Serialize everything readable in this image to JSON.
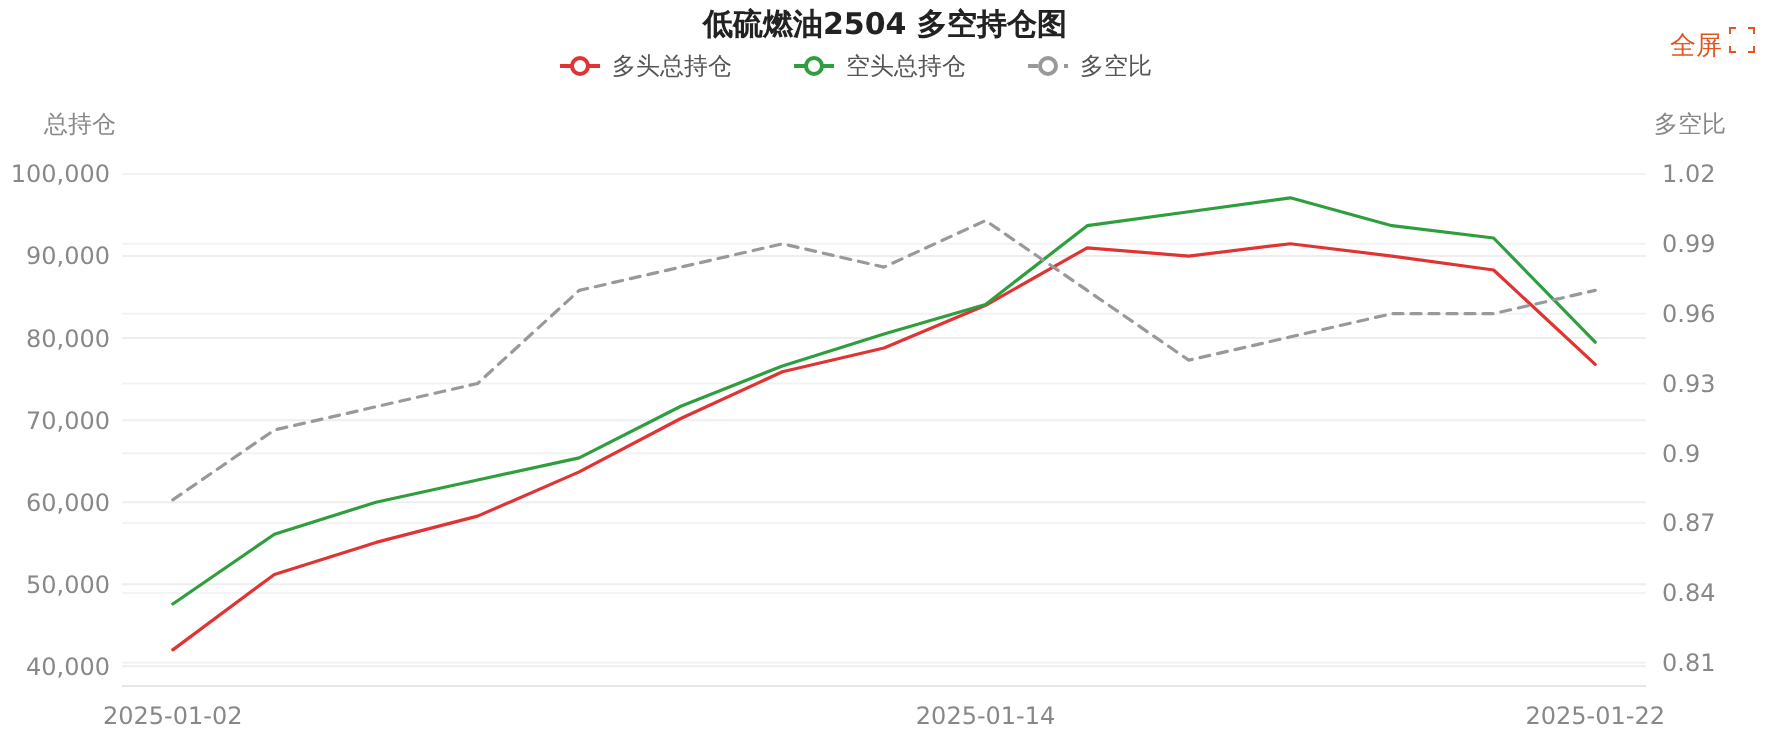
{
  "chart_data": {
    "type": "line",
    "title": "低硫燃油2504 多空持仓图",
    "ylabel": "总持仓",
    "y2label": "多空比",
    "annotations": [
      "全屏"
    ],
    "categories": [
      "2025-01-02",
      null,
      null,
      null,
      null,
      null,
      null,
      null,
      "2025-01-14",
      null,
      null,
      null,
      null,
      null,
      "2025-01-22"
    ],
    "series": [
      {
        "name": "多头总持仓",
        "color": "#e03333",
        "values": [
          42000,
          51200,
          55100,
          58300,
          63700,
          70200,
          75900,
          78800,
          84000,
          91000,
          90000,
          91500,
          90000,
          88300,
          76800
        ]
      },
      {
        "name": "空头总持仓",
        "color": "#2e9e3e",
        "values": [
          47600,
          56100,
          60000,
          62700,
          65400,
          71700,
          76600,
          80500,
          84100,
          93700,
          95400,
          97100,
          93700,
          92200,
          79500
        ]
      },
      {
        "name": "多空比",
        "color": "#999999",
        "axis": "y2",
        "line_style": "dashed",
        "values": [
          0.88,
          0.91,
          0.92,
          0.93,
          0.97,
          0.98,
          0.99,
          0.98,
          1.0,
          0.97,
          0.94,
          0.95,
          0.96,
          0.96,
          0.97
        ]
      }
    ],
    "ylim": [
      37600,
      100000
    ],
    "yticks": [
      {
        "value": 40000,
        "label": "40,000"
      },
      {
        "value": 50000,
        "label": "50,000"
      },
      {
        "value": 60000,
        "label": "60,000"
      },
      {
        "value": 70000,
        "label": "70,000"
      },
      {
        "value": 80000,
        "label": "80,000"
      },
      {
        "value": 90000,
        "label": "90,000"
      },
      {
        "value": 100000,
        "label": "100,000"
      }
    ],
    "y2lim": [
      0.8,
      1.02
    ],
    "y2ticks": [
      0.81,
      0.84,
      0.87,
      0.9,
      0.93,
      0.96,
      0.99,
      1.02
    ],
    "grid": true,
    "legend": "top",
    "marker": "none",
    "line_style": "solid"
  }
}
